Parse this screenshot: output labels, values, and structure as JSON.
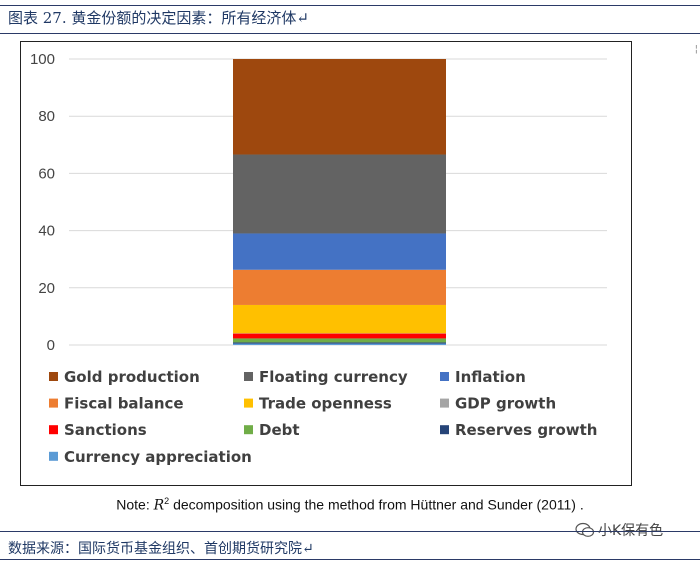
{
  "figure": {
    "title": "图表 27. 黄金份额的决定因素：所有经济体↵",
    "note_prefix": "Note: ",
    "note_symbol": "R",
    "note_sup": "2",
    "note_suffix": " decomposition using the method from Hüttner and Sunder (2011) .",
    "source": "数据来源：国际货币基金组织、首创期货研究院↵",
    "watermark": "小K保有色"
  },
  "chart_data": {
    "type": "bar",
    "stacked": true,
    "title": "",
    "xlabel": "",
    "ylabel": "",
    "ylim": [
      0,
      100
    ],
    "yticks": [
      0,
      20,
      40,
      60,
      80,
      100
    ],
    "grid": true,
    "legend_position": "bottom",
    "categories": [
      ""
    ],
    "series": [
      {
        "name": "Currency appreciation",
        "values": [
          0.5
        ],
        "color": "#5b9bd5"
      },
      {
        "name": "Reserves growth",
        "values": [
          0.4
        ],
        "color": "#264478"
      },
      {
        "name": "Debt",
        "values": [
          1.4
        ],
        "color": "#70ad47"
      },
      {
        "name": "Sanctions",
        "values": [
          1.7
        ],
        "color": "#ff0000"
      },
      {
        "name": "GDP growth",
        "values": [
          0.1
        ],
        "color": "#a5a5a5"
      },
      {
        "name": "Trade openness",
        "values": [
          9.9
        ],
        "color": "#ffc000"
      },
      {
        "name": "Fiscal balance",
        "values": [
          12.3
        ],
        "color": "#ed7d31"
      },
      {
        "name": "Inflation",
        "values": [
          12.7
        ],
        "color": "#4472c4"
      },
      {
        "name": "Floating currency",
        "values": [
          27.6
        ],
        "color": "#636363"
      },
      {
        "name": "Gold production",
        "values": [
          33.4
        ],
        "color": "#9e480e"
      }
    ],
    "legend_order": [
      "Gold production",
      "Floating currency",
      "Inflation",
      "Fiscal balance",
      "Trade openness",
      "GDP growth",
      "Sanctions",
      "Debt",
      "Reserves growth",
      "Currency appreciation"
    ]
  }
}
